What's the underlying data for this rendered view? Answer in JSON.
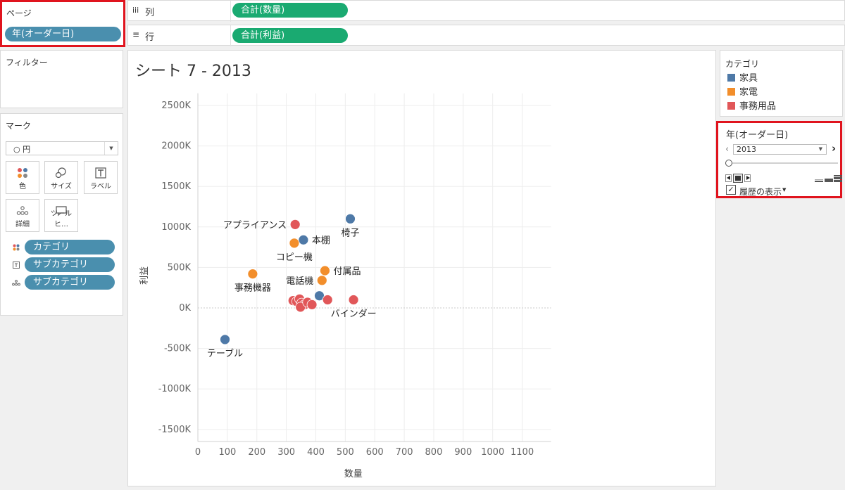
{
  "pages_shelf": {
    "title": "ページ",
    "pill": "年(オーダー日)"
  },
  "columns_shelf": {
    "icon": "iii",
    "label": "列",
    "pill": "合計(数量)"
  },
  "rows_shelf": {
    "icon": "≡",
    "label": "行",
    "pill": "合計(利益)"
  },
  "filters": {
    "title": "フィルター"
  },
  "marks": {
    "title": "マーク",
    "type_value": "○ 円",
    "buttons": {
      "color": "色",
      "size": "サイズ",
      "label": "ラベル",
      "detail": "詳細",
      "tooltip": "ツールヒ…"
    },
    "fields": [
      {
        "label": "カテゴリ",
        "icon": "color-icon"
      },
      {
        "label": "サブカテゴリ",
        "icon": "label-icon"
      },
      {
        "label": "サブカテゴリ",
        "icon": "detail-icon"
      }
    ]
  },
  "sheet": {
    "title": "シート 7 - 2013"
  },
  "legend": {
    "title": "カテゴリ",
    "items": [
      {
        "label": "家具",
        "color": "#4e79a7"
      },
      {
        "label": "家電",
        "color": "#f28e2b"
      },
      {
        "label": "事務用品",
        "color": "#e15759"
      }
    ]
  },
  "page_control": {
    "title": "年(オーダー日)",
    "value": "2013",
    "show_history": "履歴の表示"
  },
  "chart_data": {
    "type": "scatter",
    "title": "シート 7 - 2013",
    "xlabel": "数量",
    "ylabel": "利益",
    "xlim": [
      0,
      1200
    ],
    "ylim": [
      -1650000,
      2650000
    ],
    "x_ticks": [
      0,
      100,
      200,
      300,
      400,
      500,
      600,
      700,
      800,
      900,
      1000,
      1100
    ],
    "y_ticks": [
      -1500000,
      -1000000,
      -500000,
      0,
      500000,
      1000000,
      1500000,
      2000000,
      2500000
    ],
    "y_tick_labels": [
      "-1500K",
      "-1000K",
      "-500K",
      "0K",
      "500K",
      "1000K",
      "1500K",
      "2000K",
      "2500K"
    ],
    "points": [
      {
        "x": 92,
        "y": -390000,
        "category": "家具",
        "label": "テーブル",
        "label_pos": "below"
      },
      {
        "x": 330,
        "y": 1030000,
        "category": "事務用品",
        "label": "アプライアンス",
        "label_pos": "left"
      },
      {
        "x": 358,
        "y": 840000,
        "category": "家具",
        "label": "本棚",
        "label_pos": "right"
      },
      {
        "x": 327,
        "y": 800000,
        "category": "家電",
        "label": "コピー機",
        "label_pos": "below"
      },
      {
        "x": 517,
        "y": 1100000,
        "category": "家具",
        "label": "椅子",
        "label_pos": "below"
      },
      {
        "x": 186,
        "y": 420000,
        "category": "家電",
        "label": "事務機器",
        "label_pos": "below"
      },
      {
        "x": 431,
        "y": 460000,
        "category": "家電",
        "label": "付属品",
        "label_pos": "right"
      },
      {
        "x": 421,
        "y": 340000,
        "category": "家電",
        "label": "電話機",
        "label_pos": "left"
      },
      {
        "x": 528,
        "y": 100000,
        "category": "事務用品",
        "label": "バインダー",
        "label_pos": "below"
      },
      {
        "x": 412,
        "y": 150000,
        "category": "家具",
        "label": "",
        "label_pos": ""
      },
      {
        "x": 440,
        "y": 100000,
        "category": "事務用品",
        "label": "",
        "label_pos": ""
      },
      {
        "x": 323,
        "y": 90000,
        "category": "事務用品",
        "label": "",
        "label_pos": ""
      },
      {
        "x": 335,
        "y": 80000,
        "category": "事務用品",
        "label": "",
        "label_pos": ""
      },
      {
        "x": 345,
        "y": 110000,
        "category": "事務用品",
        "label": "",
        "label_pos": ""
      },
      {
        "x": 352,
        "y": 60000,
        "category": "事務用品",
        "label": "",
        "label_pos": ""
      },
      {
        "x": 362,
        "y": 40000,
        "category": "事務用品",
        "label": "",
        "label_pos": ""
      },
      {
        "x": 348,
        "y": 10000,
        "category": "事務用品",
        "label": "",
        "label_pos": ""
      },
      {
        "x": 372,
        "y": 70000,
        "category": "事務用品",
        "label": "",
        "label_pos": ""
      },
      {
        "x": 387,
        "y": 40000,
        "category": "事務用品",
        "label": "",
        "label_pos": ""
      }
    ]
  }
}
